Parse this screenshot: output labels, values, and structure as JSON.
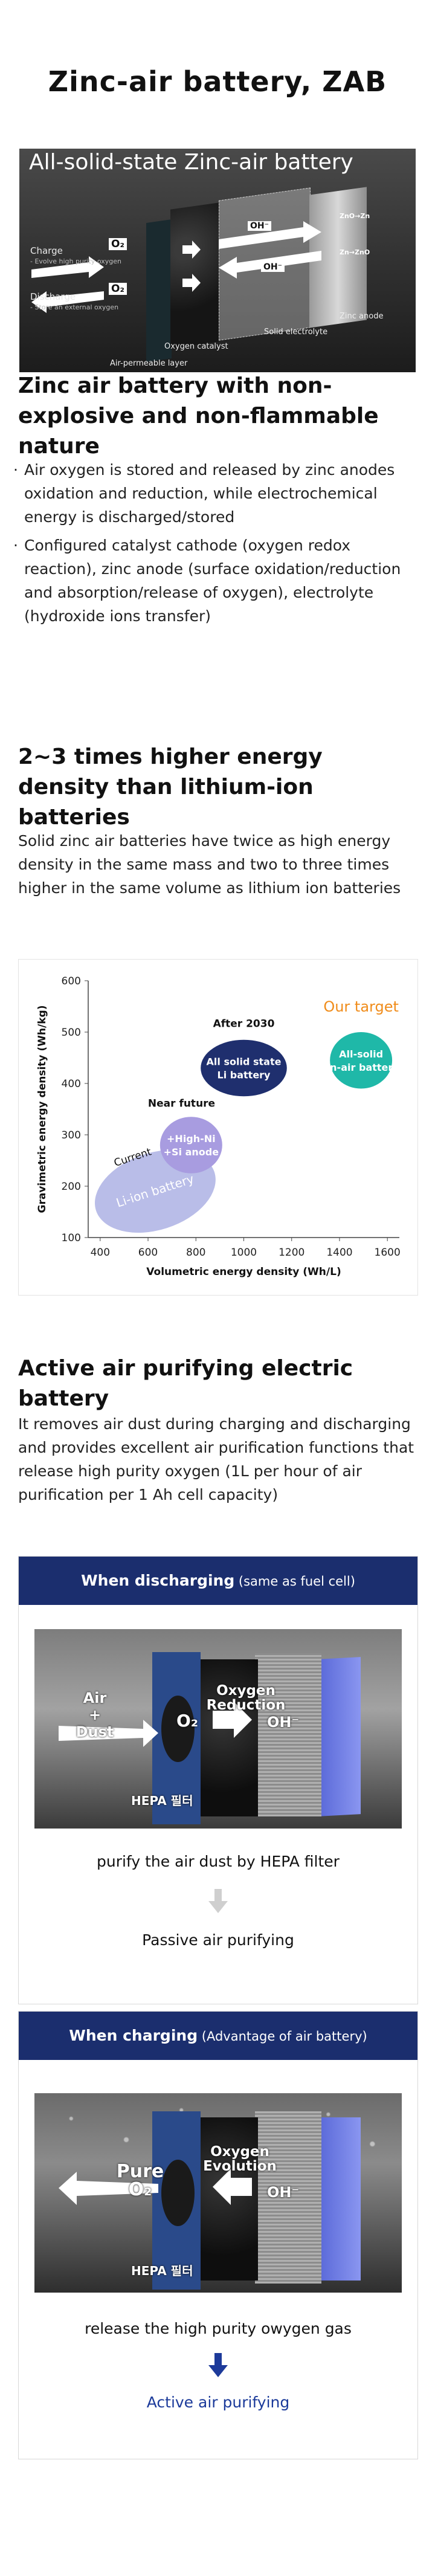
{
  "page_title": "Zinc-air battery, ZAB",
  "hero": {
    "title": "All-solid-state Zinc-air battery",
    "charge_label": "Charge",
    "charge_desc": "- Evolve high purity oxygen",
    "discharge_label": "Discharge",
    "discharge_desc": "- Store an external oxygen",
    "o2_top": "O₂",
    "o2_bottom": "O₂",
    "oh_top": "OH⁻",
    "oh_bottom": "OH⁻",
    "zn_top": "ZnO→Zn",
    "zn_bottom": "Zn→ZnO",
    "zinc_anode": "Zinc anode",
    "solid_electrolyte": "Solid electrolyte",
    "oxygen_catalyst": "Oxygen catalyst",
    "air_layer": "Air-permeable layer"
  },
  "section1": {
    "heading": "Zinc air battery with non-explosive and non-flammable nature",
    "bullets": [
      "Air oxygen is stored and released by zinc anodes oxidation and reduction, while electrochemical energy is discharged/stored",
      "Configured catalyst cathode (oxygen redox reaction), zinc anode (surface oxidation/reduction and absorption/release of oxygen), electrolyte (hydroxide ions transfer)"
    ]
  },
  "section2": {
    "heading": "2~3 times higher energy density than lithium-ion batteries",
    "body": "Solid zinc air batteries have twice as high energy density in the same mass and two to three times higher in the same volume as lithium ion batteries"
  },
  "chart_data": {
    "type": "scatter",
    "xlabel": "Volumetric energy density (Wh/L)",
    "ylabel": "Gravimetric energy density (Wh/kg)",
    "xlim": [
      350,
      1650
    ],
    "ylim": [
      100,
      600
    ],
    "xticks": [
      400,
      600,
      800,
      1000,
      1200,
      1400,
      1600
    ],
    "yticks": [
      100,
      200,
      300,
      400,
      500,
      600
    ],
    "grid": false,
    "regions": [
      {
        "name": "Current",
        "bubble_label": "Li-ion battery",
        "cx": 630,
        "cy": 190,
        "rx": 260,
        "ry": 75,
        "color": "#b9bde8"
      },
      {
        "name": "Near future",
        "bubble_label": "+High-Ni\n+Si anode",
        "cx": 780,
        "cy": 280,
        "rx": 130,
        "ry": 55,
        "color": "#a89ce0"
      },
      {
        "name": "After 2030",
        "bubble_label": "All solid state\nLi battery",
        "cx": 1000,
        "cy": 430,
        "rx": 180,
        "ry": 55,
        "color": "#1f2f6e"
      },
      {
        "name": "Our target",
        "bubble_label": "All-solid\nZn-air battery",
        "cx": 1490,
        "cy": 445,
        "rx": 130,
        "ry": 55,
        "color": "#1fb8a8"
      }
    ],
    "target_color": "#f08c1a"
  },
  "section3": {
    "heading": "Active air purifying electric battery",
    "body": "It removes air dust during charging and discharging and provides excellent air purification functions that release high purity oxygen (1L per hour of air purification per 1 Ah cell capacity)"
  },
  "discharging": {
    "head_bold": "When discharging",
    "head_sub": " (same as fuel cell)",
    "photo_air": "Air\n+\nDust",
    "photo_o2": "O₂",
    "photo_reaction": "Oxygen\nReduction",
    "photo_oh": "OH⁻",
    "photo_hepa": "HEPA 필터",
    "caption": "purify the air dust by HEPA filter",
    "result": "Passive air purifying"
  },
  "charging": {
    "head_bold": "When charging",
    "head_sub": " (Advantage of air battery)",
    "photo_pure": "Pure\nO₂",
    "photo_reaction": "Oxygen\nEvolution",
    "photo_oh": "OH⁻",
    "photo_hepa": "HEPA 필터",
    "caption": "release the high purity owygen gas",
    "result": "Active air purifying"
  },
  "colors": {
    "navy": "#1b2e6e",
    "result_blue": "#1b3a9a",
    "arrow_grey": "#cfcfcf",
    "arrow_blue": "#1d3a9a"
  }
}
